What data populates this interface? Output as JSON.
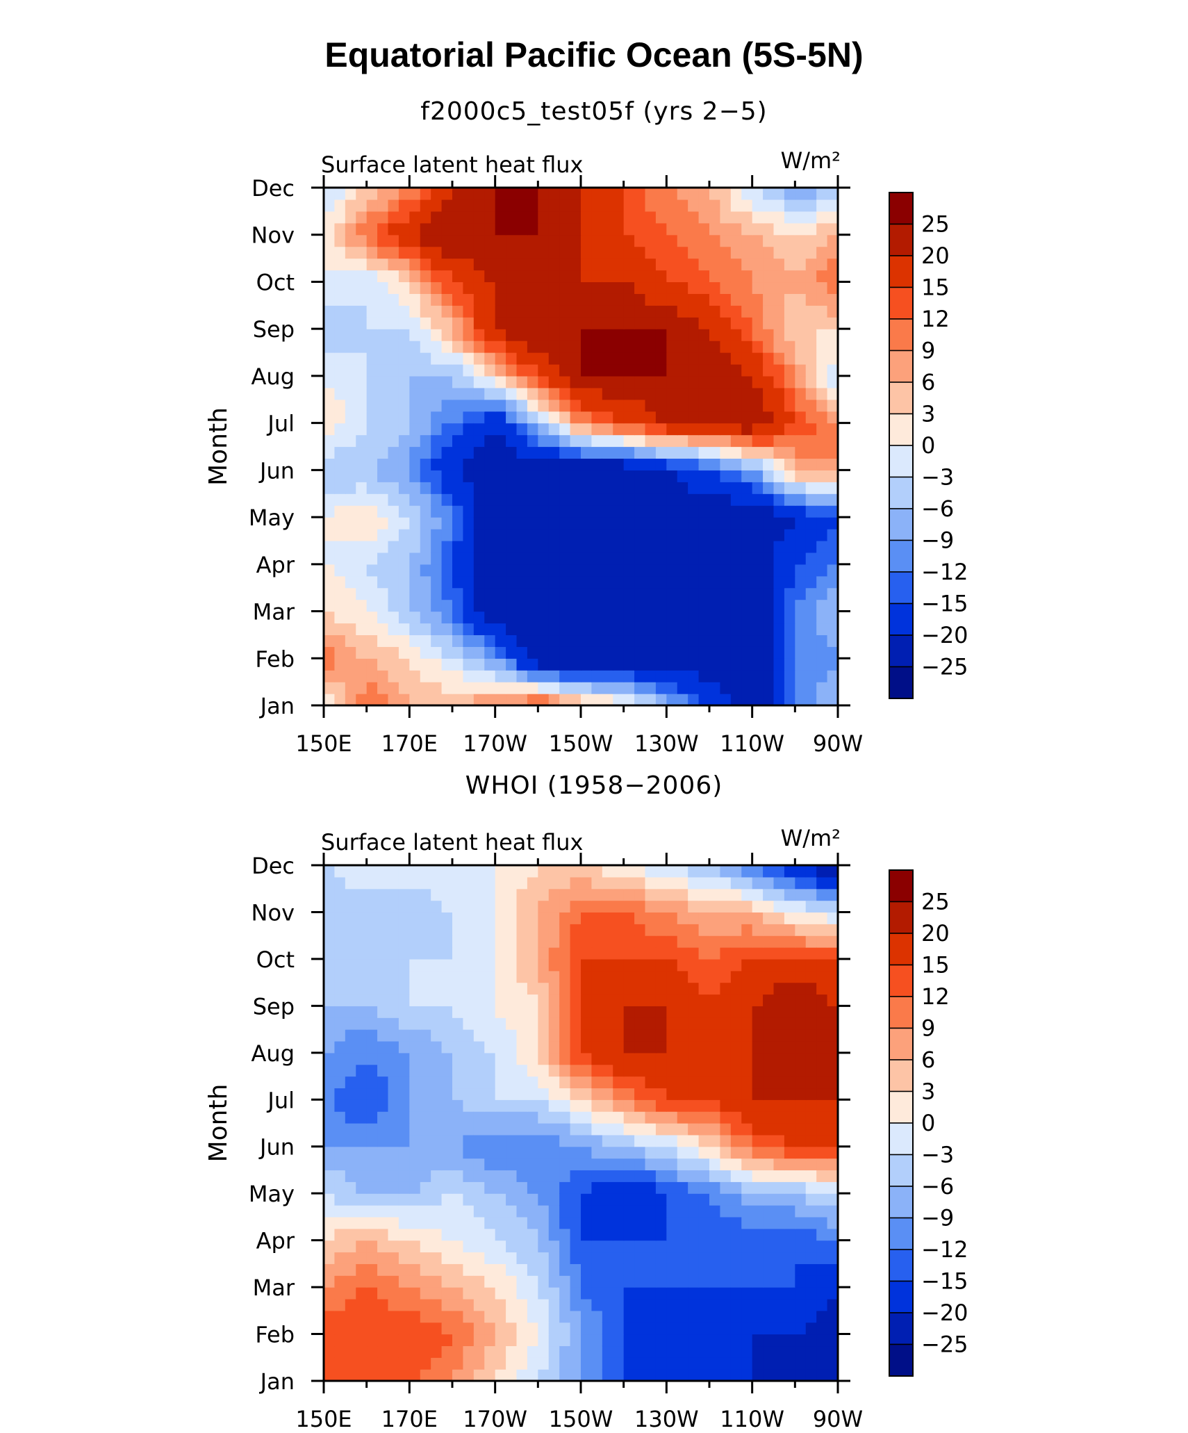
{
  "title": "Equatorial Pacific Ocean (5S-5N)",
  "colorbar": {
    "labels": [
      "25",
      "20",
      "15",
      "12",
      "9",
      "6",
      "3",
      "0",
      "−3",
      "−6",
      "−9",
      "−12",
      "−15",
      "−20",
      "−25"
    ],
    "colors": [
      "#8b0000",
      "#b31b00",
      "#dc3300",
      "#f65020",
      "#fa7a4a",
      "#fca17b",
      "#fdc4a6",
      "#feeadb",
      "#dbe9fd",
      "#b2cffb",
      "#8bb2f8",
      "#5a8ff4",
      "#2760ef",
      "#0033dc",
      "#001fb2",
      "#000f88"
    ]
  },
  "chart_data": [
    {
      "type": "heatmap",
      "title": "f2000c5_test05f (yrs 2−5)",
      "variable_label": "Surface latent heat flux",
      "units_label": "W/m²",
      "ylabel": "Month",
      "xticks": [
        "150E",
        "170E",
        "170W",
        "150W",
        "130W",
        "110W",
        "90W"
      ],
      "yticks": [
        "Jan",
        "Feb",
        "Mar",
        "Apr",
        "May",
        "Jun",
        "Jul",
        "Aug",
        "Sep",
        "Oct",
        "Nov",
        "Dec"
      ],
      "x": [
        150,
        160,
        170,
        180,
        190,
        200,
        210,
        220,
        230,
        240,
        250,
        260,
        270
      ],
      "y": [
        "Jan",
        "Feb",
        "Mar",
        "Apr",
        "May",
        "Jun",
        "Jul",
        "Aug",
        "Sep",
        "Oct",
        "Nov",
        "Dec"
      ],
      "z": [
        [
          -2,
          12,
          6,
          6,
          9,
          15,
          6,
          3,
          -6,
          -15,
          -25,
          -12,
          -6
        ],
        [
          12,
          6,
          3,
          -3,
          -9,
          -25,
          -25,
          -25,
          -25,
          -25,
          -25,
          -12,
          -9
        ],
        [
          3,
          0,
          -6,
          -12,
          -25,
          -25,
          -25,
          -25,
          -25,
          -25,
          -25,
          -12,
          -6
        ],
        [
          0,
          -3,
          -6,
          -15,
          -25,
          -25,
          -25,
          -25,
          -25,
          -25,
          -25,
          -15,
          -12
        ],
        [
          0,
          3,
          -3,
          -12,
          -25,
          -25,
          -25,
          -25,
          -25,
          -25,
          -25,
          -20,
          -15
        ],
        [
          -6,
          -6,
          -9,
          -20,
          -25,
          -25,
          -25,
          -25,
          -20,
          -15,
          -9,
          6,
          9
        ],
        [
          3,
          -3,
          -6,
          -12,
          -20,
          -6,
          9,
          15,
          20,
          20,
          25,
          15,
          9
        ],
        [
          0,
          -3,
          -6,
          -6,
          3,
          15,
          25,
          25,
          25,
          25,
          20,
          9,
          -3
        ],
        [
          -6,
          -3,
          -3,
          6,
          20,
          25,
          25,
          25,
          25,
          20,
          12,
          3,
          3
        ],
        [
          0,
          -3,
          3,
          15,
          20,
          25,
          20,
          20,
          15,
          12,
          9,
          6,
          12
        ],
        [
          0,
          12,
          20,
          25,
          25,
          25,
          20,
          15,
          12,
          9,
          6,
          3,
          6
        ],
        [
          -3,
          3,
          9,
          20,
          25,
          25,
          20,
          15,
          9,
          6,
          -3,
          -9,
          -6
        ]
      ],
      "zlevels": [
        -25,
        -20,
        -15,
        -12,
        -9,
        -6,
        -3,
        0,
        3,
        6,
        9,
        12,
        15,
        20,
        25
      ]
    },
    {
      "type": "heatmap",
      "title": "WHOI (1958−2006)",
      "variable_label": "Surface latent heat flux",
      "units_label": "W/m²",
      "ylabel": "Month",
      "xticks": [
        "150E",
        "170E",
        "170W",
        "150W",
        "130W",
        "110W",
        "90W"
      ],
      "yticks": [
        "Jan",
        "Feb",
        "Mar",
        "Apr",
        "May",
        "Jun",
        "Jul",
        "Aug",
        "Sep",
        "Oct",
        "Nov",
        "Dec"
      ],
      "x": [
        150,
        160,
        170,
        180,
        190,
        200,
        210,
        220,
        230,
        240,
        250,
        260,
        270
      ],
      "y": [
        "Jan",
        "Feb",
        "Mar",
        "Apr",
        "May",
        "Jun",
        "Jul",
        "Aug",
        "Sep",
        "Oct",
        "Nov",
        "Dec"
      ],
      "z": [
        [
          12,
          15,
          12,
          9,
          3,
          -3,
          -9,
          -15,
          -20,
          -20,
          -20,
          -25,
          -25
        ],
        [
          15,
          15,
          15,
          12,
          6,
          0,
          -9,
          -15,
          -20,
          -20,
          -20,
          -20,
          -25
        ],
        [
          9,
          12,
          9,
          6,
          3,
          -3,
          -12,
          -15,
          -15,
          -15,
          -15,
          -15,
          -20
        ],
        [
          3,
          6,
          3,
          0,
          -3,
          -6,
          -15,
          -15,
          -15,
          -15,
          -15,
          -15,
          -12
        ],
        [
          -3,
          -6,
          -6,
          -3,
          -6,
          -9,
          -15,
          -20,
          -15,
          -12,
          -6,
          -6,
          -3
        ],
        [
          -9,
          -9,
          -9,
          -9,
          -12,
          -12,
          -9,
          -6,
          -3,
          3,
          12,
          15,
          15
        ],
        [
          -12,
          -15,
          -9,
          -6,
          -3,
          -3,
          3,
          9,
          15,
          15,
          20,
          20,
          20
        ],
        [
          -9,
          -12,
          -9,
          -6,
          -3,
          3,
          15,
          20,
          20,
          15,
          20,
          20,
          20
        ],
        [
          -6,
          -6,
          -3,
          -3,
          0,
          3,
          15,
          20,
          20,
          15,
          20,
          25,
          20
        ],
        [
          -3,
          -3,
          -3,
          -3,
          0,
          6,
          15,
          15,
          15,
          12,
          15,
          15,
          15
        ],
        [
          -6,
          -6,
          -6,
          -3,
          0,
          6,
          12,
          12,
          9,
          6,
          6,
          0,
          -3
        ],
        [
          -3,
          0,
          0,
          0,
          0,
          3,
          3,
          0,
          -3,
          -6,
          -12,
          -20,
          -25
        ]
      ],
      "zlevels": [
        -25,
        -20,
        -15,
        -12,
        -9,
        -6,
        -3,
        0,
        3,
        6,
        9,
        12,
        15,
        20,
        25
      ]
    }
  ]
}
